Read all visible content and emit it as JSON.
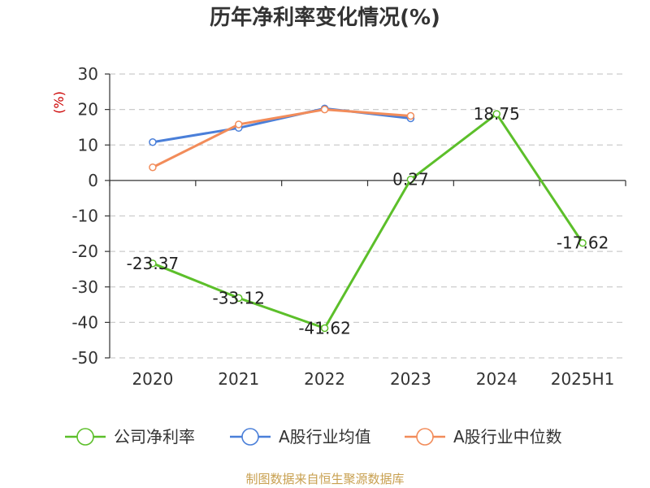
{
  "chart_data": {
    "type": "line",
    "title": "历年净利率变化情况(%)",
    "ylabel": "(%)",
    "categories": [
      "2020",
      "2021",
      "2022",
      "2023",
      "2024",
      "2025H1"
    ],
    "ylim": [
      -50,
      30
    ],
    "yticks": [
      "30",
      "20",
      "10",
      "0",
      "-10",
      "-20",
      "-30",
      "-40",
      "-50"
    ],
    "grid": true,
    "legend_position": "bottom",
    "series": [
      {
        "name": "公司净利率",
        "color": "#5cbf2a",
        "values": [
          -23.37,
          -33.12,
          -41.62,
          0.27,
          18.75,
          -17.62
        ],
        "labels": [
          "-23.37",
          "-33.12",
          "-41.62",
          "0.27",
          "18.75",
          "-17.62"
        ]
      },
      {
        "name": "A股行业均值",
        "color": "#4a7fd9",
        "values": [
          10.8,
          14.8,
          20.3,
          17.5,
          null,
          null
        ]
      },
      {
        "name": "A股行业中位数",
        "color": "#f28c5a",
        "values": [
          3.7,
          15.8,
          20.0,
          18.2,
          null,
          null
        ]
      }
    ],
    "source": "制图数据来自恒生聚源数据库",
    "colors": {
      "ylabel": "#cc0000",
      "source": "#c8a050",
      "axis": "#333333",
      "grid": "#cccccc"
    }
  }
}
